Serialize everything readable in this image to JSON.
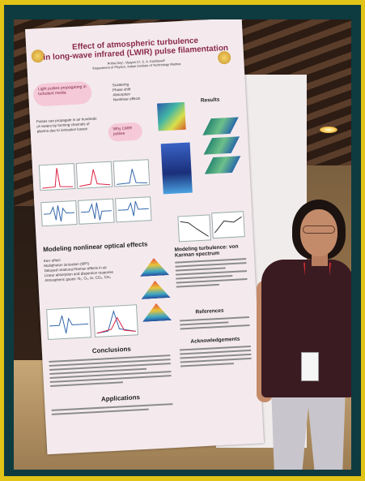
{
  "colors": {
    "outer_border": "#e2c418",
    "inner_frame": "#0e3b3f",
    "poster_background": "#f4eaee",
    "poster_title": "#8a2a4a",
    "callout_bubble": "#f5c9d7"
  },
  "poster": {
    "title_line1": "Effect of atmospheric turbulence",
    "title_line2": "in long-wave infrared (LWIR) pulse filamentation",
    "authors": "Pritha Dey¹, Vijayan C², S. A. Kandasail³",
    "affiliation": "¹Department of Physics, Indian Institute of Technology Madras",
    "intro_bubble": "Light pulses propagating in turbulent media",
    "effects_list": [
      "Scattering",
      "Phase shift",
      "Absorption",
      "Nonlinear effects"
    ],
    "intro_text": "Pulses can propagate in air hundreds of meters by forming channels of plasma due to ionization losses",
    "why_bubble": "Why LWIR pulses",
    "results_heading": "Results",
    "section_nonlinear": "Modeling nonlinear optical effects",
    "section_turbulence": "Modeling turbulence: von Karman spectrum",
    "nonlinear_items": [
      "Kerr effect",
      "Multiphoton ionization (MPI)",
      "Delayed rotational Raman effects in air",
      "Linear absorption and dispersion response",
      "Atmospheric gases: N₂, O₂, Ar, CO₂, CH₄"
    ],
    "references_heading": "References",
    "ack_heading": "Acknowledgements",
    "conclusions_heading": "Conclusions",
    "applications_heading": "Applications"
  }
}
